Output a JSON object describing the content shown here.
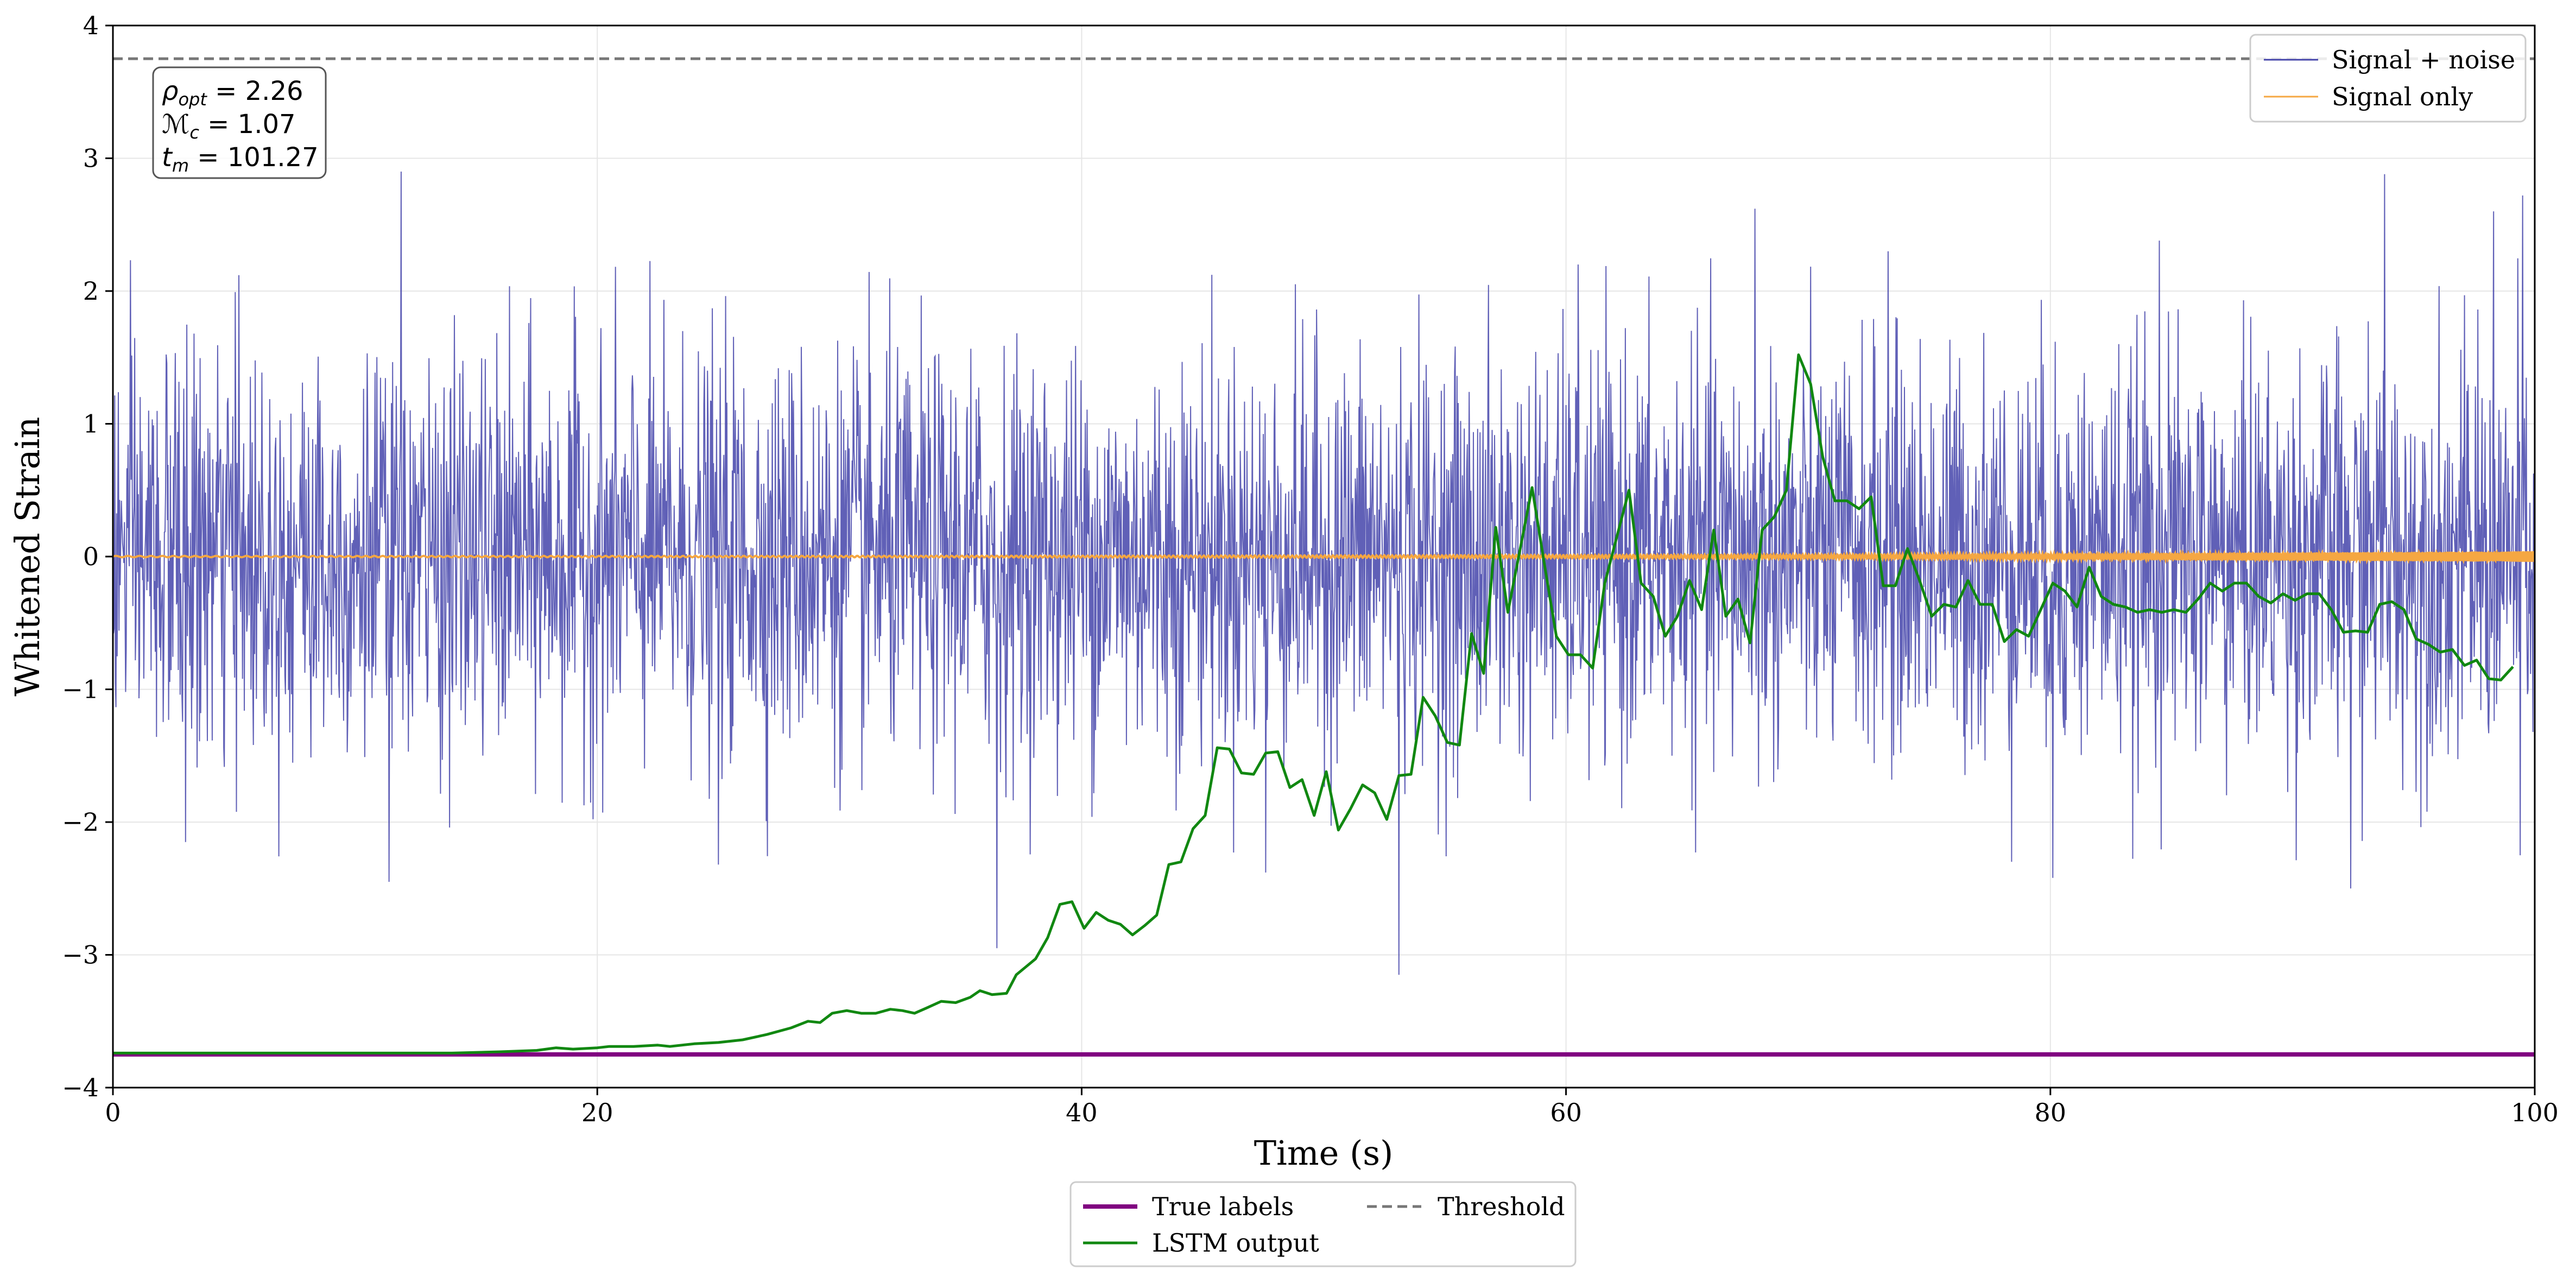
{
  "chart_data": {
    "type": "line",
    "xlabel": "Time (s)",
    "ylabel": "Whitened Strain",
    "xlim": [
      0,
      100
    ],
    "ylim": [
      -4,
      4
    ],
    "x_ticks": [
      0,
      20,
      40,
      60,
      80,
      100
    ],
    "x_tick_labels": [
      "0",
      "20",
      "40",
      "60",
      "80",
      "100"
    ],
    "y_ticks": [
      -4,
      -3,
      -2,
      -1,
      0,
      1,
      2,
      3,
      4
    ],
    "y_tick_labels": [
      "−4",
      "−3",
      "−2",
      "−1",
      "0",
      "1",
      "2",
      "3",
      "4"
    ],
    "grid": true,
    "annotation": {
      "lines": [
        {
          "symbol": "ρ",
          "sub": "opt",
          "value": " = 2.26"
        },
        {
          "symbol": "ℳ",
          "sub": "c",
          "value": " = 1.07"
        },
        {
          "symbol": "t",
          "sub": "m",
          "value": " = 101.27"
        }
      ]
    },
    "legend_upper": {
      "placement": "top-right",
      "entries": [
        {
          "label": "Signal + noise",
          "color": "#4444aa",
          "style": "solid-thin"
        },
        {
          "label": "Signal only",
          "color": "#f5a742",
          "style": "solid-thin"
        }
      ]
    },
    "legend_lower": {
      "placement": "below-center",
      "entries": [
        {
          "label": "True labels",
          "color": "#800080",
          "style": "solid-thick"
        },
        {
          "label": "LSTM output",
          "color": "#118811",
          "style": "solid"
        },
        {
          "label": "Threshold",
          "color": "#777777",
          "style": "dashed"
        }
      ]
    },
    "series": [
      {
        "name": "Signal + noise",
        "color": "#4444aa",
        "kind": "noise",
        "sample_rate_hz": 40,
        "std": 0.75,
        "rare_spikes": [
          {
            "x": 11.9,
            "y": 2.9
          },
          {
            "x": 11.4,
            "y": -2.45
          },
          {
            "x": 5.2,
            "y": 2.12
          },
          {
            "x": 36.5,
            "y": -2.95
          },
          {
            "x": 53.1,
            "y": -3.15
          },
          {
            "x": 47.6,
            "y": -2.38
          },
          {
            "x": 67.8,
            "y": 2.62
          },
          {
            "x": 93.8,
            "y": 2.88
          },
          {
            "x": 92.4,
            "y": -2.5
          },
          {
            "x": 80.1,
            "y": -2.42
          },
          {
            "x": 98.3,
            "y": 2.6
          },
          {
            "x": 99.5,
            "y": 2.72
          },
          {
            "x": 99.4,
            "y": -2.25
          },
          {
            "x": 25.0,
            "y": -2.32
          },
          {
            "x": 3.0,
            "y": -2.15
          },
          {
            "x": 84.5,
            "y": 2.38
          },
          {
            "x": 73.3,
            "y": 2.3
          },
          {
            "x": 60.5,
            "y": 2.2
          }
        ]
      },
      {
        "name": "Signal only",
        "color": "#f5a742",
        "kind": "chirp",
        "amplitude_start": 0.005,
        "amplitude_end": 0.04
      },
      {
        "name": "LSTM output",
        "color": "#118811",
        "points": [
          [
            0,
            -3.74
          ],
          [
            10,
            -3.74
          ],
          [
            14,
            -3.74
          ],
          [
            16,
            -3.73
          ],
          [
            17.5,
            -3.72
          ],
          [
            18.3,
            -3.7
          ],
          [
            19,
            -3.71
          ],
          [
            20,
            -3.7
          ],
          [
            20.5,
            -3.69
          ],
          [
            21.5,
            -3.69
          ],
          [
            22.5,
            -3.68
          ],
          [
            23,
            -3.69
          ],
          [
            24,
            -3.67
          ],
          [
            25,
            -3.66
          ],
          [
            26,
            -3.64
          ],
          [
            27,
            -3.6
          ],
          [
            28,
            -3.55
          ],
          [
            28.7,
            -3.5
          ],
          [
            29.2,
            -3.51
          ],
          [
            29.7,
            -3.44
          ],
          [
            30.3,
            -3.42
          ],
          [
            30.9,
            -3.44
          ],
          [
            31.5,
            -3.44
          ],
          [
            32.1,
            -3.41
          ],
          [
            32.6,
            -3.42
          ],
          [
            33.1,
            -3.44
          ],
          [
            33.6,
            -3.4
          ],
          [
            34.2,
            -3.35
          ],
          [
            34.8,
            -3.36
          ],
          [
            35.4,
            -3.32
          ],
          [
            35.8,
            -3.27
          ],
          [
            36.3,
            -3.3
          ],
          [
            36.9,
            -3.29
          ],
          [
            37.3,
            -3.15
          ],
          [
            37.7,
            -3.09
          ],
          [
            38.1,
            -3.03
          ],
          [
            38.6,
            -2.87
          ],
          [
            39.1,
            -2.62
          ],
          [
            39.6,
            -2.6
          ],
          [
            40.1,
            -2.8
          ],
          [
            40.6,
            -2.68
          ],
          [
            41.1,
            -2.74
          ],
          [
            41.6,
            -2.77
          ],
          [
            42.1,
            -2.85
          ],
          [
            42.6,
            -2.78
          ],
          [
            43.1,
            -2.7
          ],
          [
            43.6,
            -2.32
          ],
          [
            44.1,
            -2.3
          ],
          [
            44.6,
            -2.05
          ],
          [
            45.1,
            -1.95
          ],
          [
            45.6,
            -1.44
          ],
          [
            46.1,
            -1.45
          ],
          [
            46.6,
            -1.63
          ],
          [
            47.1,
            -1.64
          ],
          [
            47.6,
            -1.48
          ],
          [
            48.1,
            -1.47
          ],
          [
            48.6,
            -1.74
          ],
          [
            49.1,
            -1.68
          ],
          [
            49.6,
            -1.95
          ],
          [
            50.1,
            -1.62
          ],
          [
            50.6,
            -2.06
          ],
          [
            51.1,
            -1.9
          ],
          [
            51.6,
            -1.72
          ],
          [
            52.1,
            -1.78
          ],
          [
            52.6,
            -1.98
          ],
          [
            53.1,
            -1.65
          ],
          [
            53.6,
            -1.64
          ],
          [
            54.1,
            -1.06
          ],
          [
            54.6,
            -1.2
          ],
          [
            55.1,
            -1.4
          ],
          [
            55.6,
            -1.42
          ],
          [
            56.1,
            -0.58
          ],
          [
            56.6,
            -0.88
          ],
          [
            57.1,
            0.22
          ],
          [
            57.6,
            -0.42
          ],
          [
            58.1,
            0.05
          ],
          [
            58.6,
            0.52
          ],
          [
            59.1,
            -0.05
          ],
          [
            59.6,
            -0.6
          ],
          [
            60.1,
            -0.74
          ],
          [
            60.6,
            -0.74
          ],
          [
            61.1,
            -0.84
          ],
          [
            61.6,
            -0.2
          ],
          [
            62.1,
            0.15
          ],
          [
            62.6,
            0.5
          ],
          [
            63.1,
            -0.2
          ],
          [
            63.6,
            -0.3
          ],
          [
            64.1,
            -0.6
          ],
          [
            64.6,
            -0.45
          ],
          [
            65.1,
            -0.18
          ],
          [
            65.6,
            -0.4
          ],
          [
            66.1,
            0.2
          ],
          [
            66.6,
            -0.45
          ],
          [
            67.1,
            -0.32
          ],
          [
            67.6,
            -0.65
          ],
          [
            68.1,
            0.2
          ],
          [
            68.6,
            0.3
          ],
          [
            69.1,
            0.5
          ],
          [
            69.6,
            1.52
          ],
          [
            70.1,
            1.3
          ],
          [
            70.6,
            0.75
          ],
          [
            71.1,
            0.42
          ],
          [
            71.6,
            0.42
          ],
          [
            72.1,
            0.36
          ],
          [
            72.6,
            0.45
          ],
          [
            73.1,
            -0.22
          ],
          [
            73.6,
            -0.22
          ],
          [
            74.1,
            0.06
          ],
          [
            74.6,
            -0.18
          ],
          [
            75.1,
            -0.45
          ],
          [
            75.6,
            -0.36
          ],
          [
            76.1,
            -0.38
          ],
          [
            76.6,
            -0.18
          ],
          [
            77.1,
            -0.36
          ],
          [
            77.6,
            -0.36
          ],
          [
            78.1,
            -0.64
          ],
          [
            78.6,
            -0.55
          ],
          [
            79.1,
            -0.6
          ],
          [
            79.6,
            -0.4
          ],
          [
            80.1,
            -0.2
          ],
          [
            80.6,
            -0.26
          ],
          [
            81.1,
            -0.38
          ],
          [
            81.6,
            -0.08
          ],
          [
            82.1,
            -0.3
          ],
          [
            82.6,
            -0.36
          ],
          [
            83.1,
            -0.38
          ],
          [
            83.6,
            -0.42
          ],
          [
            84.1,
            -0.4
          ],
          [
            84.6,
            -0.42
          ],
          [
            85.1,
            -0.4
          ],
          [
            85.6,
            -0.42
          ],
          [
            86.1,
            -0.32
          ],
          [
            86.6,
            -0.2
          ],
          [
            87.1,
            -0.26
          ],
          [
            87.6,
            -0.2
          ],
          [
            88.1,
            -0.2
          ],
          [
            88.6,
            -0.3
          ],
          [
            89.1,
            -0.35
          ],
          [
            89.6,
            -0.28
          ],
          [
            90.1,
            -0.33
          ],
          [
            90.6,
            -0.28
          ],
          [
            91.1,
            -0.28
          ],
          [
            91.6,
            -0.4
          ],
          [
            92.1,
            -0.57
          ],
          [
            92.6,
            -0.56
          ],
          [
            93.1,
            -0.57
          ],
          [
            93.6,
            -0.36
          ],
          [
            94.1,
            -0.34
          ],
          [
            94.6,
            -0.4
          ],
          [
            95.1,
            -0.62
          ],
          [
            95.6,
            -0.66
          ],
          [
            96.1,
            -0.72
          ],
          [
            96.6,
            -0.7
          ],
          [
            97.1,
            -0.82
          ],
          [
            97.6,
            -0.78
          ],
          [
            98.1,
            -0.92
          ],
          [
            98.6,
            -0.93
          ],
          [
            99.1,
            -0.83
          ]
        ]
      },
      {
        "name": "True labels",
        "color": "#800080",
        "points": [
          [
            0,
            -3.75
          ],
          [
            100,
            -3.75
          ]
        ]
      },
      {
        "name": "Threshold",
        "color": "#777777",
        "points": [
          [
            0,
            3.75
          ],
          [
            100,
            3.75
          ]
        ]
      }
    ]
  }
}
